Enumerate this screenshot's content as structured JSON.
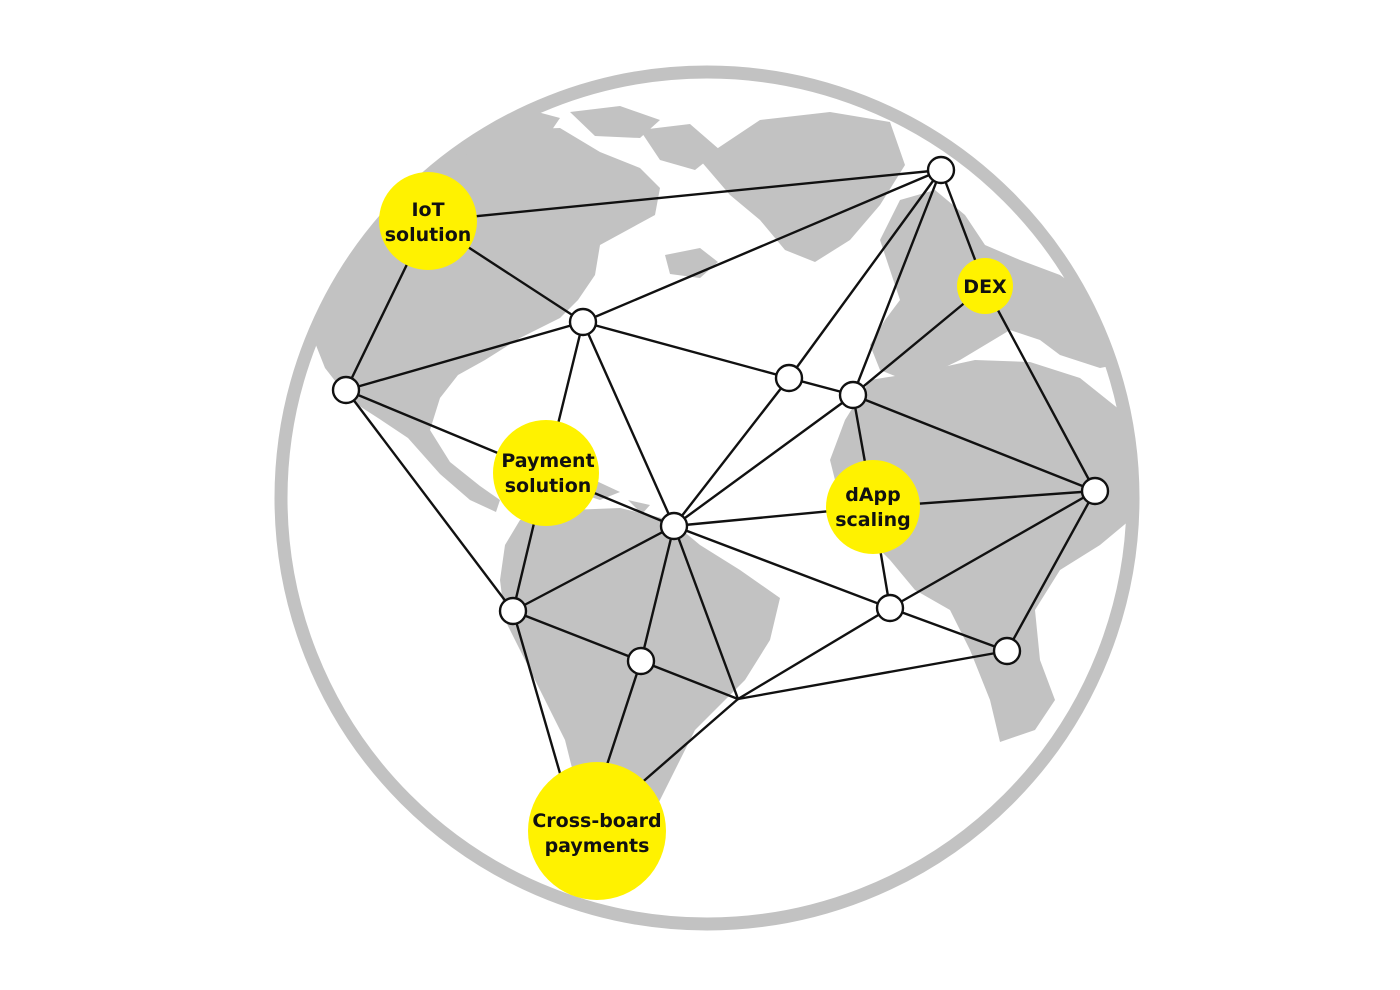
{
  "colors": {
    "background": "#ffffff",
    "globe_ring": "#c2c2c2",
    "land": "#c2c2c2",
    "edge": "#111111",
    "node_fill": "#ffffff",
    "hub_fill": "#fff200"
  },
  "hubs": {
    "iot": {
      "line1": "IoT",
      "line2": "solution"
    },
    "payment": {
      "line1": "Payment",
      "line2": "solution"
    },
    "dex": {
      "line1": "DEX"
    },
    "dapp": {
      "line1": "dApp",
      "line2": "scaling"
    },
    "crossboard": {
      "line1": "Cross-board",
      "line2": "payments"
    }
  }
}
